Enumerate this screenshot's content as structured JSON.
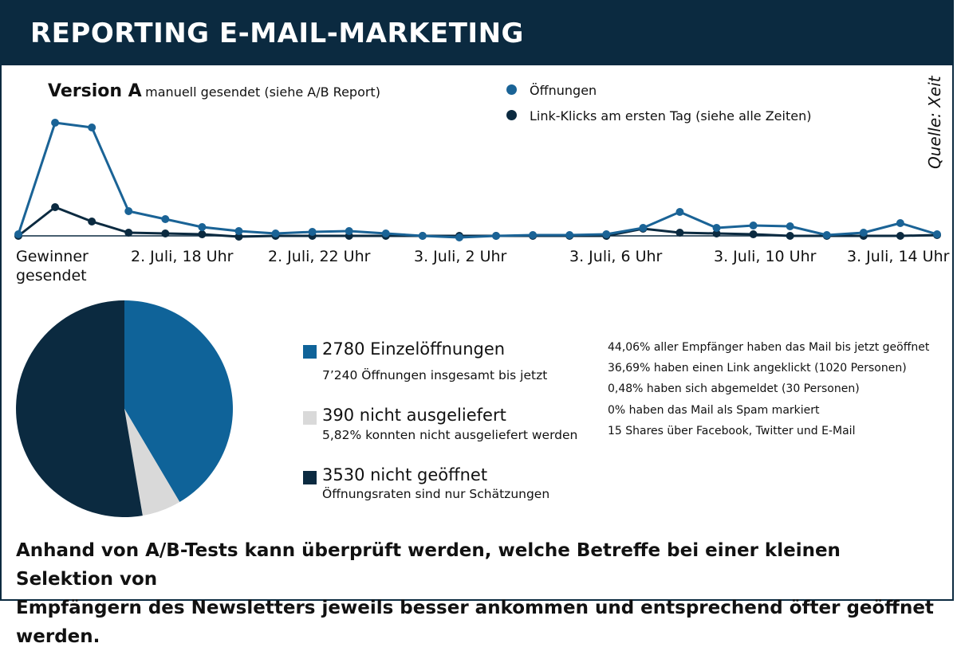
{
  "header": {
    "title": "REPORTING E-MAIL-MARKETING"
  },
  "version": {
    "bold": "Version A",
    "note": "manuell gesendet (siehe A/B Report)"
  },
  "source": "Quelle: Xeit",
  "footer": {
    "line1": "Anhand von A/B-Tests kann überprüft werden, welche Betreffe bei einer kleinen Selektion von",
    "line2": "Empfängern des Newsletters jeweils besser ankommen und entsprechend öfter geöffnet werden."
  },
  "stats": [
    {
      "big": "2780 Einzelöffnungen",
      "small": "7’240 Öffnungen insgesamt bis jetzt",
      "color": "#0f6399"
    },
    {
      "big": "390 nicht ausgeliefert",
      "small": "5,82% konnten nicht ausgeliefert werden",
      "color": "#d9d9d9"
    },
    {
      "big": "3530 nicht geöffnet",
      "small": "Öffnungsraten sind nur Schätzungen",
      "color": "#0b2a40"
    }
  ],
  "facts": [
    "44,06% aller Empfänger haben das Mail bis jetzt geöffnet",
    "36,69% haben einen Link angeklickt (1020 Personen)",
    "0,48% haben sich abgemeldet (30 Personen)",
    "0% haben das Mail als Spam markiert",
    "15 Shares über Facebook, Twitter und E-Mail"
  ],
  "chart_data": [
    {
      "type": "line",
      "title": "",
      "x_tick_labels": [
        "Gewinner gesendet",
        "2. Juli, 18 Uhr",
        "2. Juli, 22 Uhr",
        "3. Juli, 2 Uhr",
        "3. Juli, 6 Uhr",
        "3. Juli, 10 Uhr",
        "3. Juli, 14 Uhr"
      ],
      "y_tick_labels": [],
      "grid": false,
      "legend_placement": "top-right",
      "series": [
        {
          "name": "Öffnungen",
          "color": "#1a6396",
          "values": [
            2,
            142,
            136,
            31,
            21,
            11,
            6,
            3,
            5,
            6,
            3,
            0,
            -2,
            0,
            1,
            1,
            2,
            10,
            30,
            10,
            13,
            12,
            1,
            4,
            16,
            2
          ]
        },
        {
          "name": "Link-Klicks am ersten Tag (siehe alle Zeiten)",
          "color": "#0b2a40",
          "values": [
            0,
            36,
            18,
            4,
            3,
            2,
            -1,
            0,
            0,
            0,
            0,
            0,
            0,
            0,
            0,
            0,
            0,
            9,
            4,
            3,
            2,
            0,
            0,
            0,
            0,
            1
          ]
        }
      ]
    },
    {
      "type": "pie",
      "slices": [
        {
          "label": "2780 Einzelöffnungen",
          "value": 2780,
          "color": "#0f6399"
        },
        {
          "label": "390 nicht ausgeliefert",
          "value": 390,
          "color": "#d9d9d9"
        },
        {
          "label": "3530 nicht geöffnet",
          "value": 3530,
          "color": "#0b2a40"
        }
      ]
    }
  ]
}
